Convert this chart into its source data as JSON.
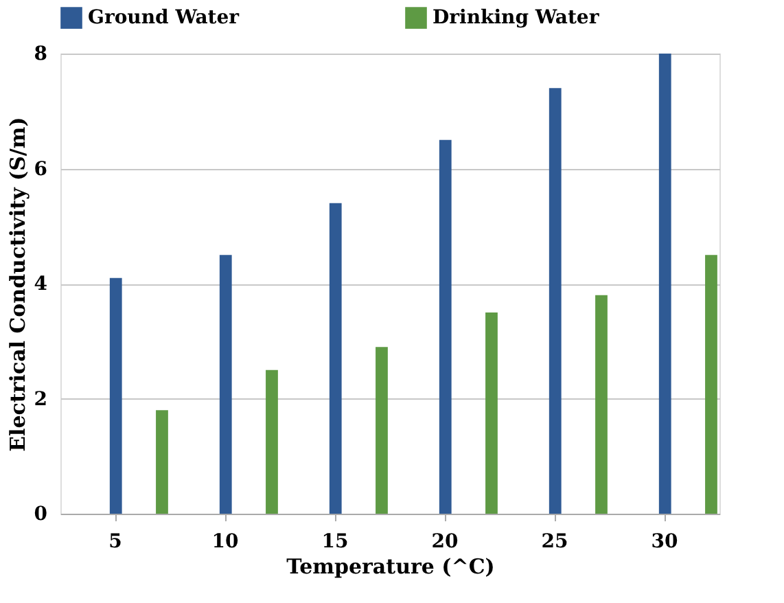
{
  "chart_data": {
    "type": "bar",
    "xlabel": "Temperature (^C)",
    "ylabel": "Electrical Conductivity  (S/m)",
    "categories": [
      "5",
      "10",
      "15",
      "20",
      "25",
      "30"
    ],
    "series": [
      {
        "name": "Ground Water",
        "color": "#2f5a94",
        "values": [
          4.1,
          4.5,
          5.4,
          6.5,
          7.4,
          8.0
        ]
      },
      {
        "name": "Drinking Water",
        "color": "#5e9a44",
        "values": [
          1.8,
          2.5,
          2.9,
          3.5,
          3.8,
          4.5
        ]
      }
    ],
    "ylim": [
      0,
      8
    ],
    "yticks": [
      0,
      2,
      4,
      6,
      8
    ],
    "grid": "y",
    "legend": "top"
  }
}
